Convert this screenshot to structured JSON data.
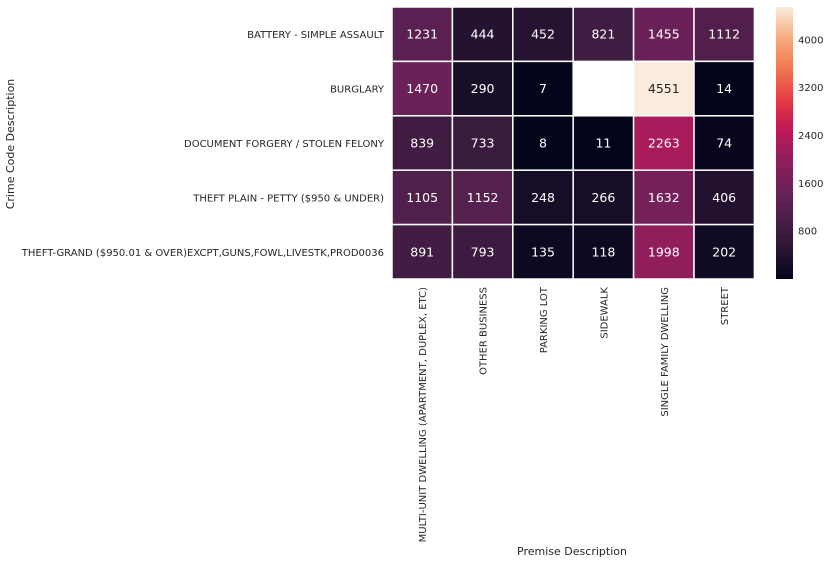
{
  "chart_data": {
    "type": "heatmap",
    "title": "",
    "xlabel": "Premise Description",
    "ylabel": "Crime Code Description",
    "x_categories": [
      "MULTI-UNIT DWELLING (APARTMENT, DUPLEX, ETC)",
      "OTHER BUSINESS",
      "PARKING LOT",
      "SIDEWALK",
      "SINGLE FAMILY DWELLING",
      "STREET"
    ],
    "y_categories": [
      "BATTERY - SIMPLE ASSAULT",
      "BURGLARY",
      "DOCUMENT FORGERY / STOLEN FELONY",
      "THEFT PLAIN - PETTY ($950 & UNDER)",
      "THEFT-GRAND ($950.01 & OVER)EXCPT,GUNS,FOWL,LIVESTK,PROD0036"
    ],
    "values": [
      [
        1231,
        444,
        452,
        821,
        1455,
        1112
      ],
      [
        1470,
        290,
        7,
        null,
        4551,
        14
      ],
      [
        839,
        733,
        8,
        11,
        2263,
        74
      ],
      [
        1105,
        1152,
        248,
        266,
        1632,
        406
      ],
      [
        891,
        793,
        135,
        118,
        1998,
        202
      ]
    ],
    "colorbar": {
      "vmin": 0,
      "vmax": 4551,
      "ticks": [
        "800",
        "1600",
        "2400",
        "3200",
        "4000"
      ],
      "colormap": "rocket"
    }
  }
}
